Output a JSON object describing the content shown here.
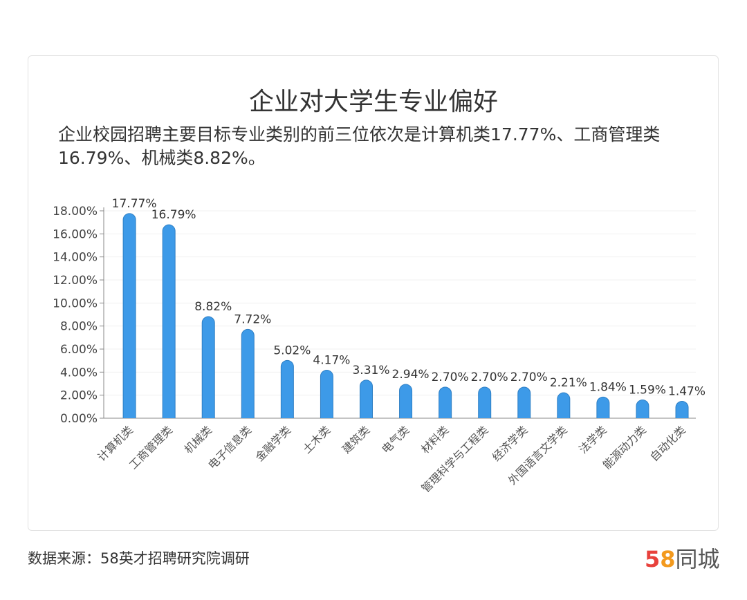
{
  "chart_data": {
    "type": "bar",
    "title": "企业对大学生专业偏好",
    "subtitle": "企业校园招聘主要目标专业类别的前三位依次是计算机类17.77%、工商管理类16.79%、机械类8.82%。",
    "categories": [
      "计算机类",
      "工商管理类",
      "机械类",
      "电子信息类",
      "金融学类",
      "土木类",
      "建筑类",
      "电气类",
      "材料类",
      "管理科学与工程类",
      "经济学类",
      "外国语言文学类",
      "法学类",
      "能源动力类",
      "自动化类"
    ],
    "values": [
      17.77,
      16.79,
      8.82,
      7.72,
      5.02,
      4.17,
      3.31,
      2.94,
      2.7,
      2.7,
      2.7,
      2.21,
      1.84,
      1.59,
      1.47
    ],
    "data_labels": [
      "17.77%",
      "16.79%",
      "8.82%",
      "7.72%",
      "5.02%",
      "4.17%",
      "3.31%",
      "2.94%",
      "2.70%",
      "2.70%",
      "2.70%",
      "2.21%",
      "1.84%",
      "1.59%",
      "1.47%"
    ],
    "y_ticks": [
      "0.00%",
      "2.00%",
      "4.00%",
      "6.00%",
      "8.00%",
      "10.00%",
      "12.00%",
      "14.00%",
      "16.00%",
      "18.00%"
    ],
    "ylim": [
      0,
      18
    ],
    "grid": true,
    "bar_color": "#3d9ae8",
    "xlabel": "",
    "ylabel": ""
  },
  "footer": {
    "source": "数据来源：58英才招聘研究院调研"
  },
  "logo": {
    "digit5": "5",
    "digit8": "8",
    "text": "同城",
    "colors": {
      "5a": "#e8413c",
      "5b": "#2a8fe0",
      "8a": "#3cb34a",
      "8b": "#f39a1e"
    }
  }
}
